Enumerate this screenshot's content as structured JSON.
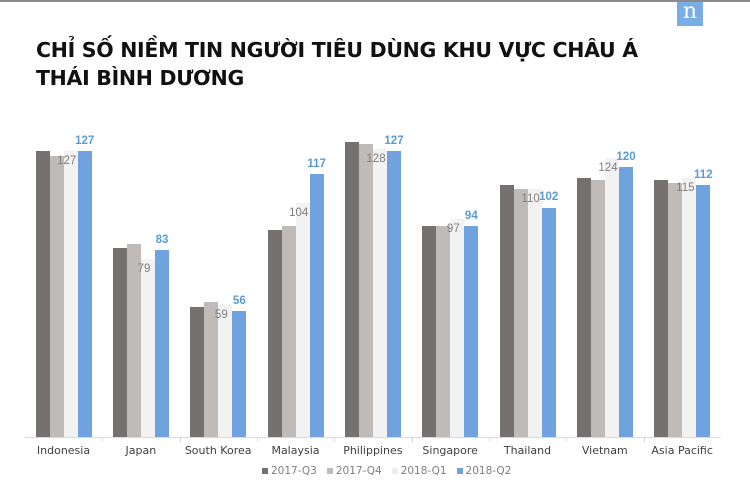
{
  "header": {
    "title_line1": "CHỈ SỐ NIỀM TIN NGƯỜI TIÊU DÙNG KHU VỰC CHÂU Á",
    "title_line2": "THÁI BÌNH DƯƠNG",
    "logo_glyph": "n"
  },
  "colors": {
    "2017-Q3": "#767171",
    "2017-Q4": "#bfbbb8",
    "2018-Q1": "#f2f2f2",
    "2018-Q2": "#6fa2de",
    "label_q2": "#5b9bd5"
  },
  "legend": [
    {
      "label": "2017-Q3"
    },
    {
      "label": "2017-Q4"
    },
    {
      "label": "2018-Q1"
    },
    {
      "label": "2018-Q2"
    }
  ],
  "chart_data": {
    "type": "bar",
    "title": "CHỈ SỐ NIỀM TIN NGƯỜI TIÊU DÙNG KHU VỰC CHÂU Á THÁI BÌNH DƯƠNG",
    "xlabel": "",
    "ylabel": "",
    "ylim": [
      0,
      150
    ],
    "grid": false,
    "legend_position": "bottom",
    "categories": [
      "Indonesia",
      "Japan",
      "South Korea",
      "Malaysia",
      "Philippines",
      "Singapore",
      "Thailand",
      "Vietnam",
      "Asia Pacific"
    ],
    "series": [
      {
        "name": "2017-Q3",
        "values": [
          127,
          84,
          58,
          92,
          131,
          94,
          112,
          115,
          114
        ],
        "labeled": false
      },
      {
        "name": "2017-Q4",
        "values": [
          125,
          86,
          60,
          94,
          130,
          94,
          110,
          114,
          113
        ],
        "labeled": false
      },
      {
        "name": "2018-Q1",
        "values": [
          127,
          79,
          59,
          104,
          128,
          97,
          110,
          124,
          115
        ],
        "labeled": true
      },
      {
        "name": "2018-Q2",
        "values": [
          127,
          83,
          56,
          117,
          127,
          94,
          102,
          120,
          112
        ],
        "labeled": true
      }
    ]
  }
}
